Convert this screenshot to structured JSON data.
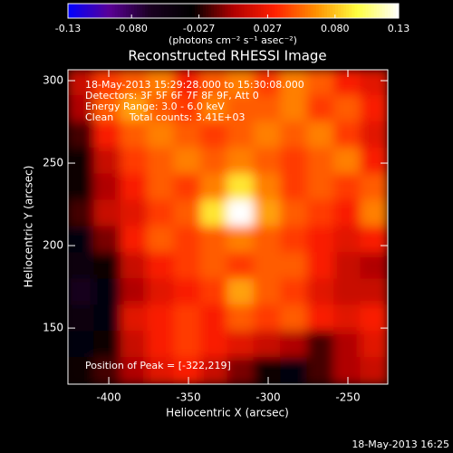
{
  "chart_data": {
    "type": "heatmap",
    "title": "Reconstructed RHESSI Image",
    "colorbar_label": "(photons cm⁻² s⁻¹ asec⁻²)",
    "zlim": [
      -0.13,
      0.13
    ],
    "zticks": [
      -0.13,
      {
        "value": -0.08,
        "label": "-0.080"
      },
      -0.027,
      0.027,
      {
        "value": 0.08,
        "label": "0.080"
      },
      0.13
    ],
    "colormap": [
      "#0000ff",
      "#5a0096",
      "#1a0020",
      "#000000",
      "#b00000",
      "#ff2000",
      "#ff9000",
      "#ffff40",
      "#ffffff"
    ],
    "x_label": "Heliocentric X (arcsec)",
    "y_label": "Heliocentric Y (arcsec)",
    "xlim": [
      -425.6,
      -225
    ],
    "ylim": [
      116,
      306.6
    ],
    "xticks": [
      -400,
      -350,
      -300,
      -250
    ],
    "yticks": [
      150,
      200,
      250,
      300
    ],
    "annotations": [
      "18-May-2013 15:29:28.000 to 15:30:08.000",
      "Detectors: 3F 5F 6F 7F 8F 9F, Att 0",
      "Energy Range: 3.0 - 6.0 keV",
      "Clean     Total counts: 3.41E+03"
    ],
    "peak_label": "Position of Peak = [-322,219]",
    "footer": "18-May-2013 16:25",
    "z": [
      [
        0.01,
        0.04,
        0.05,
        0.06,
        0.03,
        0.05,
        0.06,
        0.04,
        0.06,
        0.05,
        0.03,
        0.02
      ],
      [
        0.0,
        0.05,
        0.07,
        0.05,
        0.04,
        0.06,
        0.05,
        0.05,
        0.06,
        0.04,
        0.05,
        0.03
      ],
      [
        -0.02,
        0.03,
        0.05,
        0.06,
        0.05,
        0.04,
        0.05,
        0.06,
        0.05,
        0.06,
        0.04,
        0.02
      ],
      [
        -0.03,
        0.01,
        0.04,
        0.05,
        0.06,
        0.05,
        0.06,
        0.05,
        0.04,
        0.05,
        0.06,
        0.03
      ],
      [
        -0.03,
        0.0,
        0.03,
        0.05,
        0.04,
        0.06,
        0.09,
        0.06,
        0.04,
        0.05,
        0.04,
        0.05
      ],
      [
        -0.02,
        0.01,
        0.02,
        0.04,
        0.05,
        0.09,
        0.13,
        0.07,
        0.05,
        0.04,
        0.03,
        0.06
      ],
      [
        -0.04,
        -0.01,
        0.03,
        0.05,
        0.04,
        0.05,
        0.06,
        0.05,
        0.04,
        0.03,
        0.02,
        0.03
      ],
      [
        -0.05,
        -0.03,
        0.01,
        0.03,
        0.04,
        0.05,
        0.04,
        0.05,
        0.05,
        0.03,
        0.01,
        0.0
      ],
      [
        -0.06,
        -0.04,
        0.0,
        0.02,
        0.03,
        0.04,
        0.07,
        0.05,
        0.04,
        0.02,
        0.01,
        0.01
      ],
      [
        -0.05,
        -0.04,
        0.02,
        0.03,
        0.04,
        0.03,
        0.05,
        0.04,
        0.05,
        0.03,
        0.02,
        0.03
      ],
      [
        -0.04,
        -0.03,
        0.01,
        0.03,
        0.04,
        0.03,
        0.02,
        0.01,
        0.0,
        -0.02,
        0.0,
        0.02
      ],
      [
        -0.03,
        -0.02,
        0.0,
        0.02,
        0.03,
        0.01,
        -0.01,
        -0.03,
        -0.04,
        -0.02,
        0.0,
        0.01
      ]
    ]
  }
}
